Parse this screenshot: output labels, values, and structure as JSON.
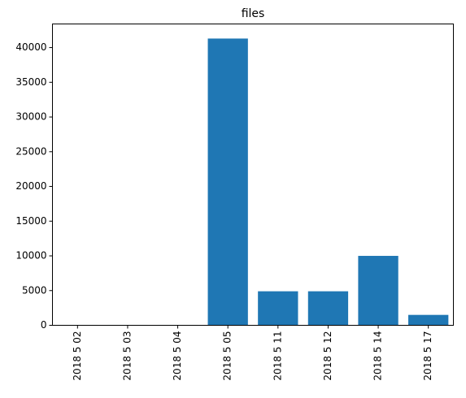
{
  "chart_data": {
    "type": "bar",
    "title": "files",
    "xlabel": "",
    "ylabel": "",
    "categories": [
      "2018 5 02",
      "2018 5 03",
      "2018 5 04",
      "2018 5 05",
      "2018 5 11",
      "2018 5 12",
      "2018 5 14",
      "2018 5 17"
    ],
    "values": [
      60,
      60,
      60,
      41300,
      4900,
      4900,
      10000,
      1500
    ],
    "ylim": [
      0,
      43400
    ],
    "yticks": [
      0,
      5000,
      10000,
      15000,
      20000,
      25000,
      30000,
      35000,
      40000
    ],
    "xtick_rotation": 90,
    "grid": false,
    "legend": "none",
    "bar_color": "#1f77b4"
  }
}
